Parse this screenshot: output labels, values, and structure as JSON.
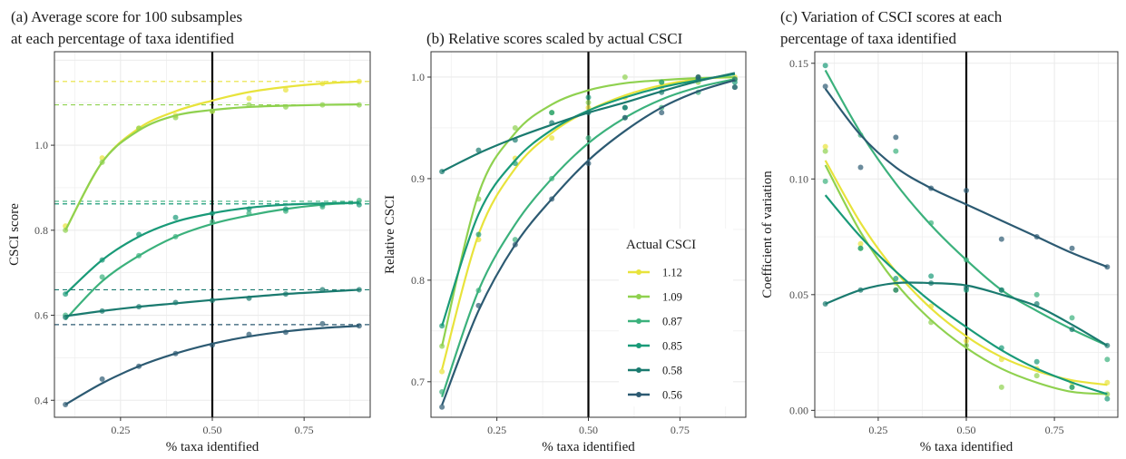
{
  "chart_data": [
    {
      "type": "scatter",
      "title": "(a) Average score for 100 subsamples at each percentage of taxa identified",
      "title_lines": [
        "(a) Average score for 100 subsamples",
        "at each percentage of taxa identified"
      ],
      "xlabel": "% taxa identified",
      "ylabel": "CSCI score",
      "xlim": [
        0.07,
        0.93
      ],
      "ylim": [
        0.36,
        1.22
      ],
      "xticks": [
        0.25,
        0.5,
        0.75
      ],
      "xtick_labels": [
        "0.25",
        "0.50",
        "0.75"
      ],
      "yticks": [
        0.4,
        0.6,
        0.8,
        1.0
      ],
      "ytick_labels": [
        "0.4",
        "0.6",
        "0.8",
        "1.0"
      ],
      "vline": 0.5,
      "grid": true,
      "x": [
        0.1,
        0.2,
        0.3,
        0.4,
        0.5,
        0.6,
        0.7,
        0.8,
        0.9
      ],
      "series": [
        {
          "name": "1.12",
          "color": "#e8e33b",
          "points": [
            0.81,
            0.97,
            1.04,
            1.07,
            1.08,
            1.11,
            1.13,
            1.145,
            1.15
          ],
          "curve": [
            0.8,
            0.96,
            1.04,
            1.08,
            1.105,
            1.125,
            1.137,
            1.145,
            1.15
          ],
          "hline": 1.15
        },
        {
          "name": "1.09",
          "color": "#8fd14f",
          "points": [
            0.8,
            0.96,
            1.04,
            1.065,
            1.08,
            1.095,
            1.09,
            1.095,
            1.095
          ],
          "curve": [
            0.8,
            0.96,
            1.035,
            1.07,
            1.083,
            1.09,
            1.093,
            1.095,
            1.096
          ],
          "hline": 1.095
        },
        {
          "name": "0.87",
          "color": "#3bb17c",
          "points": [
            0.6,
            0.69,
            0.74,
            0.785,
            0.82,
            0.84,
            0.845,
            0.855,
            0.87
          ],
          "curve": [
            0.59,
            0.68,
            0.74,
            0.785,
            0.815,
            0.835,
            0.85,
            0.86,
            0.865
          ],
          "hline": 0.868
        },
        {
          "name": "0.85",
          "color": "#199a78",
          "points": [
            0.65,
            0.73,
            0.79,
            0.83,
            0.84,
            0.85,
            0.85,
            0.86,
            0.86
          ],
          "curve": [
            0.65,
            0.73,
            0.785,
            0.82,
            0.84,
            0.853,
            0.86,
            0.863,
            0.865
          ],
          "hline": 0.862
        },
        {
          "name": "0.58",
          "color": "#1a7a6f",
          "points": [
            0.595,
            0.61,
            0.62,
            0.63,
            0.635,
            0.64,
            0.65,
            0.66,
            0.66
          ],
          "curve": [
            0.598,
            0.61,
            0.62,
            0.628,
            0.636,
            0.643,
            0.65,
            0.655,
            0.66
          ],
          "hline": 0.66
        },
        {
          "name": "0.56",
          "color": "#2c5a72",
          "points": [
            0.39,
            0.45,
            0.48,
            0.51,
            0.53,
            0.555,
            0.56,
            0.58,
            0.575
          ],
          "curve": [
            0.39,
            0.44,
            0.48,
            0.51,
            0.533,
            0.55,
            0.562,
            0.57,
            0.575
          ],
          "hline": 0.578
        }
      ]
    },
    {
      "type": "scatter",
      "title": "(b) Relative scores scaled by actual CSCI",
      "title_lines": [
        "(b) Relative scores scaled by actual CSCI"
      ],
      "xlabel": "% taxa identified",
      "ylabel": "Relative CSCI",
      "xlim": [
        0.07,
        0.93
      ],
      "ylim": [
        0.665,
        1.025
      ],
      "xticks": [
        0.25,
        0.5,
        0.75
      ],
      "xtick_labels": [
        "0.25",
        "0.50",
        "0.75"
      ],
      "yticks": [
        0.7,
        0.8,
        0.9,
        1.0
      ],
      "ytick_labels": [
        "0.7",
        "0.8",
        "0.9",
        "1.0"
      ],
      "vline": 0.5,
      "grid": true,
      "legend": {
        "title": "Actual CSCI",
        "position": "right"
      },
      "x": [
        0.1,
        0.2,
        0.3,
        0.4,
        0.5,
        0.6,
        0.7,
        0.8,
        0.9
      ],
      "series": [
        {
          "name": "1.12",
          "color": "#e8e33b",
          "points": [
            0.71,
            0.84,
            0.92,
            0.94,
            0.97,
            0.98,
            0.99,
            1.0,
            1.0
          ],
          "curve": [
            0.712,
            0.845,
            0.91,
            0.945,
            0.967,
            0.982,
            0.992,
            0.998,
            1.0
          ]
        },
        {
          "name": "1.09",
          "color": "#8fd14f",
          "points": [
            0.735,
            0.88,
            0.95,
            0.965,
            0.975,
            1.0,
            0.995,
            0.995,
            0.998
          ],
          "curve": [
            0.735,
            0.885,
            0.945,
            0.973,
            0.987,
            0.994,
            0.997,
            0.999,
            1.0
          ]
        },
        {
          "name": "0.87",
          "color": "#3bb17c",
          "points": [
            0.69,
            0.79,
            0.84,
            0.9,
            0.94,
            0.96,
            0.97,
            0.985,
            0.99
          ],
          "curve": [
            0.685,
            0.79,
            0.855,
            0.9,
            0.935,
            0.96,
            0.978,
            0.99,
            0.998
          ]
        },
        {
          "name": "0.85",
          "color": "#199a78",
          "points": [
            0.755,
            0.845,
            0.915,
            0.965,
            0.98,
            0.97,
            0.995,
            1.0,
            0.995
          ],
          "curve": [
            0.755,
            0.865,
            0.918,
            0.948,
            0.967,
            0.98,
            0.99,
            0.997,
            1.003
          ]
        },
        {
          "name": "0.58",
          "color": "#1a7a6f",
          "points": [
            0.907,
            0.928,
            0.938,
            0.955,
            0.965,
            0.97,
            0.985,
            0.998,
            0.998
          ],
          "curve": [
            0.907,
            0.925,
            0.94,
            0.953,
            0.965,
            0.975,
            0.986,
            0.996,
            1.004
          ]
        },
        {
          "name": "0.56",
          "color": "#2c5a72",
          "points": [
            0.675,
            0.775,
            0.835,
            0.88,
            0.915,
            0.96,
            0.965,
            1.0,
            0.99
          ],
          "curve": [
            0.677,
            0.77,
            0.835,
            0.88,
            0.918,
            0.947,
            0.97,
            0.986,
            0.997
          ]
        }
      ]
    },
    {
      "type": "scatter",
      "title": "(c) Variation of CSCI scores at each percentage of taxa identified",
      "title_lines": [
        "(c) Variation of CSCI scores at each",
        "percentage of taxa identified"
      ],
      "xlabel": "% taxa identified",
      "ylabel": "Coefficient of variation",
      "xlim": [
        0.07,
        0.93
      ],
      "ylim": [
        -0.003,
        0.155
      ],
      "xticks": [
        0.25,
        0.5,
        0.75
      ],
      "xtick_labels": [
        "0.25",
        "0.50",
        "0.75"
      ],
      "yticks": [
        0.0,
        0.05,
        0.1,
        0.15
      ],
      "ytick_labels": [
        "0.00",
        "0.05",
        "0.10",
        "0.15"
      ],
      "vline": 0.5,
      "grid": true,
      "x": [
        0.1,
        0.2,
        0.3,
        0.4,
        0.5,
        0.6,
        0.7,
        0.8,
        0.9
      ],
      "series": [
        {
          "name": "1.12",
          "color": "#e8e33b",
          "points": [
            0.114,
            0.072,
            0.055,
            0.045,
            0.03,
            0.022,
            0.018,
            0.012,
            0.012
          ],
          "curve": [
            0.108,
            0.081,
            0.06,
            0.044,
            0.032,
            0.023,
            0.017,
            0.013,
            0.011
          ]
        },
        {
          "name": "1.09",
          "color": "#8fd14f",
          "points": [
            0.112,
            0.07,
            0.052,
            0.038,
            0.028,
            0.01,
            0.015,
            0.01,
            0.007
          ],
          "curve": [
            0.106,
            0.077,
            0.055,
            0.039,
            0.027,
            0.018,
            0.012,
            0.008,
            0.007
          ]
        },
        {
          "name": "0.87",
          "color": "#3bb17c",
          "points": [
            0.099,
            0.119,
            0.112,
            0.081,
            0.065,
            0.052,
            0.05,
            0.04,
            0.022
          ],
          "curve": [
            0.147,
            0.12,
            0.098,
            0.08,
            0.065,
            0.052,
            0.043,
            0.035,
            0.028
          ]
        },
        {
          "name": "0.85",
          "color": "#199a78",
          "points": [
            0.149,
            0.07,
            0.057,
            0.058,
            0.052,
            0.027,
            0.021,
            0.01,
            0.005
          ],
          "curve": [
            0.093,
            0.075,
            0.06,
            0.047,
            0.036,
            0.026,
            0.018,
            0.012,
            0.007
          ]
        },
        {
          "name": "0.58",
          "color": "#1a7a6f",
          "points": [
            0.046,
            0.052,
            0.052,
            0.055,
            0.053,
            0.052,
            0.046,
            0.035,
            0.028
          ],
          "curve": [
            0.046,
            0.052,
            0.055,
            0.055,
            0.054,
            0.05,
            0.045,
            0.037,
            0.028
          ]
        },
        {
          "name": "0.56",
          "color": "#2c5a72",
          "points": [
            0.14,
            0.105,
            0.118,
            0.096,
            0.095,
            0.074,
            0.075,
            0.07,
            0.062
          ],
          "curve": [
            0.139,
            0.119,
            0.105,
            0.096,
            0.089,
            0.082,
            0.075,
            0.068,
            0.062
          ]
        }
      ]
    }
  ]
}
